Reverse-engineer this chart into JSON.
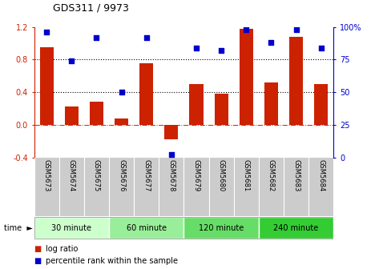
{
  "title": "GDS311 / 9973",
  "samples": [
    "GSM5673",
    "GSM5674",
    "GSM5675",
    "GSM5676",
    "GSM5677",
    "GSM5678",
    "GSM5679",
    "GSM5680",
    "GSM5681",
    "GSM5682",
    "GSM5683",
    "GSM5684"
  ],
  "log_ratio": [
    0.95,
    0.22,
    0.28,
    0.08,
    0.75,
    -0.18,
    0.5,
    0.38,
    1.18,
    0.52,
    1.08,
    0.5
  ],
  "percentile": [
    96,
    74,
    92,
    50,
    92,
    2,
    84,
    82,
    98,
    88,
    98,
    84
  ],
  "bar_color": "#cc2200",
  "dot_color": "#0000cc",
  "ylim_left": [
    -0.4,
    1.2
  ],
  "ylim_right": [
    0,
    100
  ],
  "yticks_left": [
    -0.4,
    0.0,
    0.4,
    0.8,
    1.2
  ],
  "yticks_right": [
    0,
    25,
    50,
    75,
    100
  ],
  "ytick_labels_right": [
    "0",
    "25",
    "50",
    "75",
    "100%"
  ],
  "hlines": [
    0.4,
    0.8
  ],
  "zero_line_color": "#cc2200",
  "time_groups": [
    {
      "label": "30 minute",
      "start": 0,
      "end": 3,
      "color": "#ccffcc"
    },
    {
      "label": "60 minute",
      "start": 3,
      "end": 6,
      "color": "#99ee99"
    },
    {
      "label": "120 minute",
      "start": 6,
      "end": 9,
      "color": "#66dd66"
    },
    {
      "label": "240 minute",
      "start": 9,
      "end": 12,
      "color": "#33cc33"
    }
  ],
  "legend_bar_label": "log ratio",
  "legend_dot_label": "percentile rank within the sample",
  "time_label": "time",
  "bg_color": "#ffffff",
  "tick_area_color": "#cccccc"
}
